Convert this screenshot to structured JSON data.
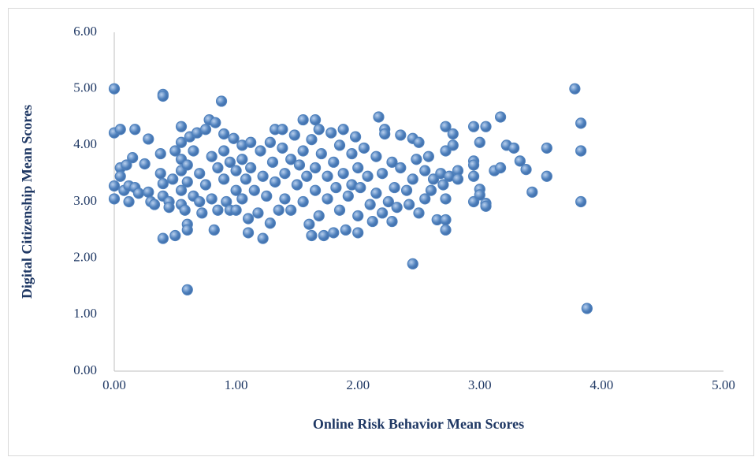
{
  "chart_data": {
    "type": "scatter",
    "xlabel": "Online Risk Behavior Mean Scores",
    "ylabel": "Digital Citizenship Mean Scores",
    "color": "#4f81bd",
    "xlim": [
      0,
      5
    ],
    "ylim": [
      0,
      6
    ],
    "xticks": [
      {
        "value": 0,
        "label": "0.00"
      },
      {
        "value": 1,
        "label": "1.00"
      },
      {
        "value": 2,
        "label": "2.00"
      },
      {
        "value": 3,
        "label": "3.00"
      },
      {
        "value": 4,
        "label": "4.00"
      },
      {
        "value": 5,
        "label": "5.00"
      }
    ],
    "yticks": [
      {
        "value": 0,
        "label": "0.00"
      },
      {
        "value": 1,
        "label": "1.00"
      },
      {
        "value": 2,
        "label": "2.00"
      },
      {
        "value": 3,
        "label": "3.00"
      },
      {
        "value": 4,
        "label": "4.00"
      },
      {
        "value": 5,
        "label": "5.00"
      },
      {
        "value": 6,
        "label": "6.00"
      }
    ],
    "grid": false,
    "x": [
      0,
      0,
      0.05,
      0,
      0,
      0.05,
      0.05,
      0.08,
      0.1,
      0.12,
      0.12,
      0.15,
      0.17,
      0.17,
      0.2,
      0.25,
      0.28,
      0.28,
      0.3,
      0.33,
      0.38,
      0.38,
      0.4,
      0.4,
      0.4,
      0.4,
      0.4,
      0.45,
      0.45,
      0.48,
      0.5,
      0.5,
      0.55,
      0.55,
      0.55,
      0.55,
      0.55,
      0.55,
      0.58,
      0.6,
      0.6,
      0.6,
      0.6,
      0.6,
      0.62,
      0.65,
      0.65,
      0.68,
      0.7,
      0.7,
      0.72,
      0.75,
      0.75,
      0.78,
      0.8,
      0.8,
      0.82,
      0.83,
      0.85,
      0.85,
      0.88,
      0.9,
      0.9,
      0.9,
      0.92,
      0.95,
      0.95,
      0.98,
      1.0,
      1.0,
      1.0,
      1.05,
      1.05,
      1.05,
      1.08,
      1.1,
      1.1,
      1.12,
      1.12,
      1.15,
      1.18,
      1.2,
      1.22,
      1.22,
      1.25,
      1.28,
      1.28,
      1.3,
      1.32,
      1.32,
      1.35,
      1.38,
      1.38,
      1.4,
      1.4,
      1.45,
      1.45,
      1.48,
      1.5,
      1.52,
      1.55,
      1.55,
      1.55,
      1.58,
      1.6,
      1.62,
      1.62,
      1.65,
      1.65,
      1.65,
      1.68,
      1.68,
      1.7,
      1.72,
      1.75,
      1.75,
      1.78,
      1.8,
      1.8,
      1.82,
      1.85,
      1.85,
      1.88,
      1.88,
      1.9,
      1.92,
      1.95,
      1.95,
      1.98,
      2.0,
      2.0,
      2.0,
      2.02,
      2.05,
      2.08,
      2.1,
      2.12,
      2.15,
      2.15,
      2.17,
      2.2,
      2.2,
      2.22,
      2.22,
      2.25,
      2.28,
      2.28,
      2.3,
      2.32,
      2.35,
      2.35,
      2.4,
      2.42,
      2.45,
      2.45,
      2.45,
      2.48,
      2.5,
      2.5,
      2.55,
      2.55,
      2.58,
      2.6,
      2.62,
      2.65,
      2.68,
      2.7,
      2.72,
      2.72,
      2.72,
      2.72,
      2.72,
      2.75,
      2.78,
      2.78,
      2.82,
      2.82,
      2.95,
      2.95,
      2.95,
      2.95,
      2.95,
      3.0,
      3.0,
      3.0,
      3.05,
      3.05,
      3.05,
      3.12,
      3.17,
      3.17,
      3.22,
      3.28,
      3.33,
      3.38,
      3.43,
      3.55,
      3.55,
      3.78,
      3.83,
      3.83,
      3.83,
      3.88
    ],
    "values": [
      5.0,
      4.22,
      4.28,
      3.28,
      3.05,
      3.6,
      3.45,
      3.2,
      3.65,
      3.0,
      3.28,
      3.78,
      4.28,
      3.25,
      3.15,
      3.67,
      4.11,
      3.17,
      3.0,
      2.95,
      3.85,
      3.5,
      4.9,
      4.87,
      3.32,
      3.1,
      2.35,
      3.0,
      2.9,
      3.4,
      3.9,
      2.4,
      4.33,
      4.05,
      3.75,
      3.55,
      3.2,
      2.95,
      2.85,
      3.65,
      3.35,
      2.6,
      2.5,
      1.44,
      4.15,
      3.9,
      3.1,
      4.22,
      3.5,
      3.0,
      2.8,
      4.28,
      3.3,
      4.45,
      3.8,
      3.05,
      2.5,
      4.4,
      3.6,
      2.85,
      4.78,
      4.2,
      3.9,
      3.4,
      3.0,
      3.7,
      2.85,
      4.12,
      3.55,
      3.2,
      2.85,
      4.0,
      3.75,
      3.05,
      3.4,
      2.7,
      2.45,
      4.05,
      3.6,
      3.2,
      2.8,
      3.9,
      3.45,
      2.35,
      3.1,
      4.05,
      2.62,
      3.7,
      4.28,
      3.35,
      2.85,
      4.28,
      3.95,
      3.5,
      3.05,
      3.75,
      2.85,
      4.18,
      3.3,
      3.65,
      4.45,
      3.9,
      3.0,
      3.45,
      2.6,
      2.4,
      4.1,
      4.45,
      3.6,
      3.2,
      2.75,
      4.28,
      3.85,
      2.4,
      3.45,
      3.05,
      4.22,
      3.7,
      2.45,
      3.25,
      4.0,
      2.85,
      4.28,
      3.5,
      2.5,
      3.1,
      3.85,
      3.3,
      4.15,
      3.6,
      2.75,
      2.45,
      3.25,
      3.95,
      3.45,
      2.95,
      2.65,
      3.8,
      3.15,
      4.5,
      3.5,
      2.8,
      4.28,
      4.2,
      3.0,
      3.7,
      2.65,
      3.25,
      2.9,
      4.18,
      3.6,
      3.2,
      2.95,
      4.12,
      3.4,
      1.9,
      3.75,
      4.05,
      2.8,
      3.05,
      3.55,
      3.8,
      3.2,
      3.4,
      2.68,
      3.5,
      3.3,
      4.33,
      3.9,
      3.05,
      2.68,
      2.5,
      3.45,
      4.2,
      4.0,
      3.55,
      3.4,
      4.33,
      3.72,
      3.65,
      3.45,
      3.0,
      4.05,
      3.22,
      3.12,
      4.33,
      2.97,
      2.92,
      3.55,
      4.5,
      3.6,
      4.0,
      3.95,
      3.72,
      3.57,
      3.17,
      3.95,
      3.45,
      5.0,
      4.39,
      3.9,
      3.0,
      1.11
    ]
  }
}
